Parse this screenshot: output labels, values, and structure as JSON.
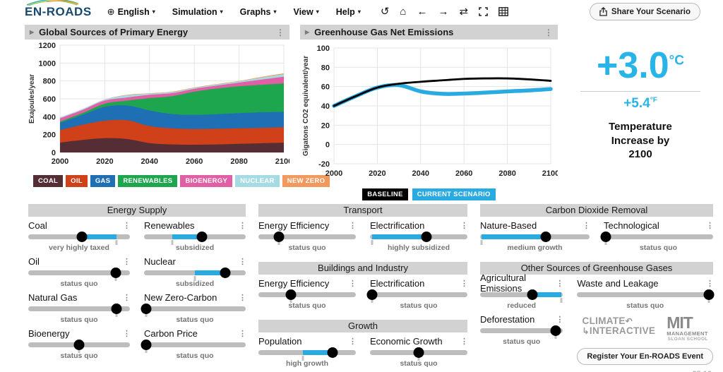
{
  "header": {
    "logo": "EN-ROADS",
    "menus": [
      {
        "icon": "globe",
        "label": "English"
      },
      {
        "label": "Simulation"
      },
      {
        "label": "Graphs"
      },
      {
        "label": "View"
      },
      {
        "label": "Help"
      }
    ],
    "toolbar": [
      "undo",
      "home",
      "back",
      "forward",
      "sync",
      "fullscreen",
      "table"
    ],
    "share_button": "Share Your Scenario"
  },
  "temperature": {
    "celsius": "+3.0",
    "celsius_unit": "°C",
    "fahrenheit": "+5.4",
    "fahrenheit_unit": "°F",
    "caption": "Temperature Increase by 2100"
  },
  "chart_data": [
    {
      "type": "area",
      "stacked": true,
      "title": "Global Sources of Primary Energy",
      "ylabel": "Exajoules/year",
      "ylim": [
        0,
        1200
      ],
      "yticks": [
        0,
        200,
        400,
        600,
        800,
        1000,
        1200
      ],
      "xticks": [
        2000,
        2020,
        2040,
        2060,
        2080,
        2100
      ],
      "x": [
        2000,
        2010,
        2020,
        2030,
        2040,
        2050,
        2060,
        2070,
        2080,
        2090,
        2100
      ],
      "series": [
        {
          "name": "coal",
          "label": "COAL",
          "color": "#542D35",
          "values": [
            110,
            140,
            160,
            150,
            105,
            90,
            87,
            90,
            97,
            103,
            110
          ]
        },
        {
          "name": "oil",
          "label": "OIL",
          "color": "#D04019",
          "values": [
            140,
            170,
            195,
            210,
            190,
            180,
            175,
            175,
            173,
            172,
            172
          ]
        },
        {
          "name": "gas",
          "label": "GAS",
          "color": "#1F6FB5",
          "values": [
            80,
            110,
            155,
            165,
            175,
            160,
            158,
            163,
            170,
            175,
            173
          ]
        },
        {
          "name": "renewables",
          "label": "RENEWABLES",
          "color": "#1EA64E",
          "values": [
            15,
            20,
            35,
            55,
            138,
            200,
            260,
            287,
            300,
            307,
            317
          ]
        },
        {
          "name": "bioenergy",
          "label": "BIOENERGY",
          "color": "#E160A5",
          "values": [
            37,
            35,
            35,
            35,
            37,
            33,
            32,
            33,
            42,
            58,
            76
          ]
        },
        {
          "name": "nuclear",
          "label": "NUCLEAR",
          "color": "#A6DBE3",
          "values": [
            10,
            10,
            12,
            25,
            13,
            12,
            10,
            12,
            13,
            23,
            27
          ]
        },
        {
          "name": "new_zero",
          "label": "NEW ZERO",
          "color": "#F29A5E",
          "values": [
            0,
            0,
            1,
            5,
            4,
            5,
            5,
            5,
            5,
            7,
            10
          ]
        }
      ],
      "legend_position": "bottom"
    },
    {
      "type": "line",
      "title": "Greenhouse Gas Net Emissions",
      "ylabel": "Gigatons CO2 equivalent/year",
      "ylim": [
        -20,
        100
      ],
      "yticks": [
        -20,
        0,
        20,
        40,
        60,
        80,
        100
      ],
      "xticks": [
        2000,
        2020,
        2040,
        2060,
        2080,
        2100
      ],
      "x": [
        2000,
        2010,
        2020,
        2030,
        2040,
        2050,
        2060,
        2070,
        2080,
        2090,
        2100
      ],
      "series": [
        {
          "name": "BASELINE",
          "color": "#000000",
          "width": 2.8,
          "values": [
            40,
            50,
            59,
            63,
            65,
            66.5,
            68,
            68.5,
            68.5,
            67.5,
            66
          ]
        },
        {
          "name": "CURRENT SCENARIO",
          "color": "#29ABE2",
          "width": 5.5,
          "values": [
            40,
            50,
            59,
            61.5,
            55,
            52.5,
            52.8,
            53.8,
            55,
            56,
            57.5
          ]
        }
      ],
      "legend_position": "bottom"
    }
  ],
  "control_columns": [
    {
      "panels": [
        {
          "title": "Energy Supply",
          "sliders": [
            {
              "label": "Coal",
              "value_pct": 53,
              "fill_start_pct": 53,
              "fill_end_pct": 87,
              "tick_pct": 87,
              "status": "very highly taxed"
            },
            {
              "label": "Renewables",
              "value_pct": 57,
              "fill_start_pct": 28,
              "fill_end_pct": 57,
              "tick_pct": 28,
              "status": "subsidized"
            },
            {
              "label": "Oil",
              "value_pct": 86,
              "tick_pct": 86,
              "status": "status quo"
            },
            {
              "label": "Nuclear",
              "value_pct": 80,
              "fill_start_pct": 50,
              "fill_end_pct": 80,
              "tick_pct": 50,
              "status": "subsidized"
            },
            {
              "label": "Natural Gas",
              "value_pct": 87,
              "tick_pct": 87,
              "status": "status quo"
            },
            {
              "label": "New Zero-Carbon",
              "value_pct": 2,
              "tick_pct": 2,
              "status": "status quo"
            },
            {
              "label": "Bioenergy",
              "value_pct": 50,
              "tick_pct": 50,
              "status": "status quo"
            },
            {
              "label": "Carbon Price",
              "value_pct": 2,
              "tick_pct": 2,
              "status": "status quo"
            }
          ]
        }
      ]
    },
    {
      "panels": [
        {
          "title": "Transport",
          "sliders": [
            {
              "label": "Energy Efficiency",
              "value_pct": 21,
              "tick_pct": 21,
              "status": "status quo"
            },
            {
              "label": "Electrification",
              "value_pct": 58,
              "fill_start_pct": 2,
              "fill_end_pct": 58,
              "tick_pct": 2,
              "status": "highly subsidized"
            }
          ]
        },
        {
          "title": "Buildings and Industry",
          "sliders": [
            {
              "label": "Energy Efficiency",
              "value_pct": 33,
              "tick_pct": 33,
              "status": "status quo"
            },
            {
              "label": "Electrification",
              "value_pct": 2,
              "tick_pct": 2,
              "status": "status quo"
            }
          ]
        },
        {
          "title": "Growth",
          "sliders": [
            {
              "label": "Population",
              "value_pct": 76,
              "fill_start_pct": 46,
              "fill_end_pct": 76,
              "tick_pct": 46,
              "status": "high growth"
            },
            {
              "label": "Economic Growth",
              "value_pct": 50,
              "tick_pct": 50,
              "status": "status quo"
            }
          ]
        }
      ]
    },
    {
      "panels": [
        {
          "title": "Carbon Dioxide Removal",
          "sliders": [
            {
              "label": "Nature-Based",
              "value_pct": 60,
              "fill_start_pct": 1,
              "fill_end_pct": 60,
              "tick_pct": 1,
              "status": "medium growth"
            },
            {
              "label": "Technological",
              "value_pct": 2,
              "tick_pct": 2,
              "status": "status quo"
            }
          ]
        },
        {
          "title": "Other Sources of Greenhouse Gases",
          "has_footer": true,
          "sliders": [
            {
              "label": "Agricultural Emissions",
              "value_pct": 63,
              "fill_start_pct": 63,
              "fill_end_pct": 98,
              "tick_pct": 98,
              "status": "reduced"
            },
            {
              "label": "Waste and Leakage",
              "value_pct": 97,
              "tick_pct": 97,
              "status": "status quo"
            },
            {
              "label": "Deforestation",
              "value_pct": 91,
              "tick_pct": 91,
              "status": "status quo"
            }
          ]
        }
      ]
    }
  ],
  "footer": {
    "climate_logo_line1": "CLIMATE",
    "climate_logo_line2": "INTERACTIVE",
    "mit_logo": "MIT",
    "mit_sub1": "MANAGEMENT",
    "mit_sub2": "SLOAN SCHOOL",
    "register_button": "Register Your En-ROADS Event",
    "version": "v25.10"
  }
}
